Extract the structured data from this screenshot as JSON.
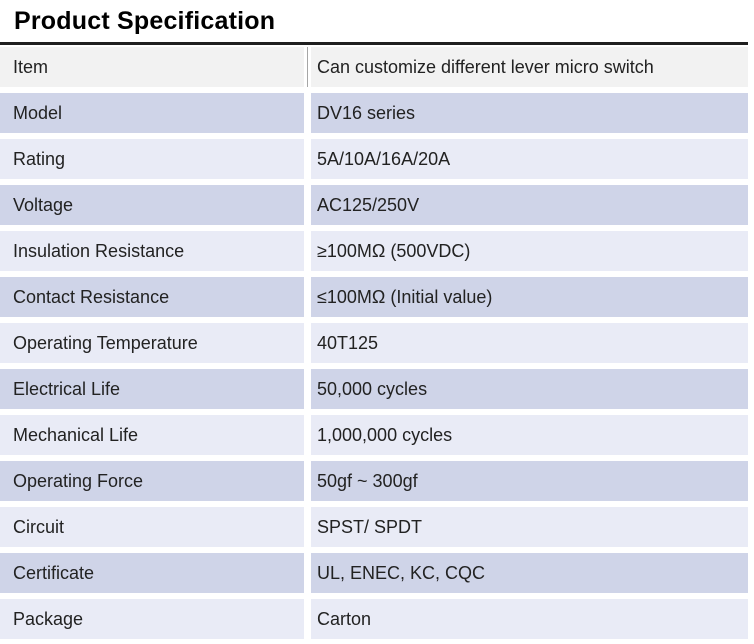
{
  "page": {
    "title": "Product Specification"
  },
  "colors": {
    "header_row_bg": "#f2f2f2",
    "row_dark_bg": "#cfd4e8",
    "row_light_bg": "#e9ebf6",
    "border": "#1f1f1f",
    "header_divider": "#a6a6a6",
    "text": "#222222"
  },
  "spec_table": {
    "rows": [
      {
        "label": "Item",
        "value": "Can customize different lever micro switch",
        "variant": "header"
      },
      {
        "label": "Model",
        "value": "DV16 series",
        "variant": "dark"
      },
      {
        "label": "Rating",
        "value": "5A/10A/16A/20A",
        "variant": "light"
      },
      {
        "label": "Voltage",
        "value": "AC125/250V",
        "variant": "dark"
      },
      {
        "label": "Insulation Resistance",
        "value": "≥100MΩ (500VDC)",
        "variant": "light"
      },
      {
        "label": "Contact Resistance",
        "value": "≤100MΩ (Initial value)",
        "variant": "dark"
      },
      {
        "label": "Operating Temperature",
        "value": "40T125",
        "variant": "light"
      },
      {
        "label": "Electrical Life",
        "value": "50,000 cycles",
        "variant": "dark"
      },
      {
        "label": "Mechanical Life",
        "value": "1,000,000 cycles",
        "variant": "light"
      },
      {
        "label": "Operating Force",
        "value": "50gf ~ 300gf",
        "variant": "dark"
      },
      {
        "label": "Circuit",
        "value": "SPST/ SPDT",
        "variant": "light"
      },
      {
        "label": "Certificate",
        "value": "UL, ENEC, KC, CQC",
        "variant": "dark"
      },
      {
        "label": "Package",
        "value": "Carton",
        "variant": "light"
      }
    ]
  }
}
